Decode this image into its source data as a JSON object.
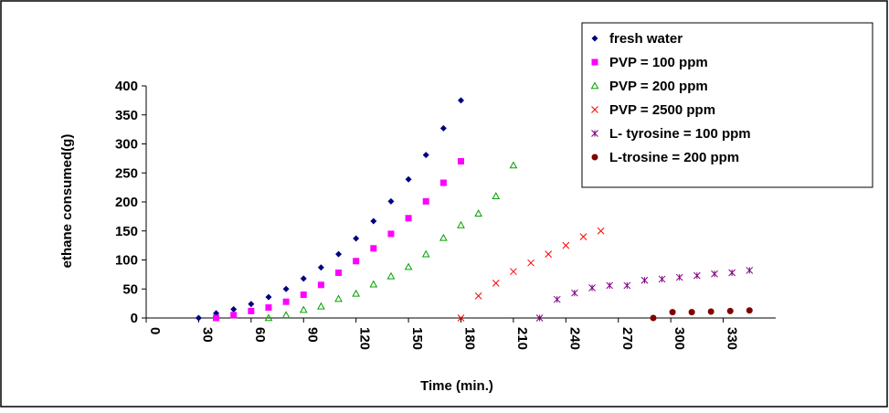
{
  "chart_data": {
    "type": "scatter",
    "xlabel": "Time (min.)",
    "ylabel": "ethane consumed(g)",
    "xlim": [
      0,
      360
    ],
    "xticks": [
      0,
      30,
      60,
      90,
      120,
      150,
      180,
      210,
      240,
      270,
      300,
      330
    ],
    "ylim": [
      0,
      400
    ],
    "yticks": [
      0,
      50,
      100,
      150,
      200,
      250,
      300,
      350,
      400
    ],
    "legend": "upper right",
    "series": [
      {
        "name": "fresh water",
        "color": "#000080",
        "marker": "diamond",
        "x": [
          30,
          40,
          50,
          60,
          70,
          80,
          90,
          100,
          110,
          120,
          130,
          140,
          150,
          160,
          170,
          180
        ],
        "values": [
          0,
          8,
          15,
          24,
          36,
          50,
          68,
          87,
          110,
          137,
          167,
          201,
          239,
          281,
          327,
          375
        ]
      },
      {
        "name": "PVP = 100 ppm",
        "color": "#ff00ff",
        "marker": "square",
        "x": [
          40,
          50,
          60,
          70,
          80,
          90,
          100,
          110,
          120,
          130,
          140,
          150,
          160,
          170,
          180
        ],
        "values": [
          0,
          5,
          12,
          18,
          28,
          40,
          57,
          78,
          98,
          120,
          145,
          172,
          201,
          233,
          270
        ]
      },
      {
        "name": "PVP = 200 ppm",
        "color": "#00a000",
        "marker": "triangle",
        "x": [
          70,
          80,
          90,
          100,
          110,
          120,
          130,
          140,
          150,
          160,
          170,
          180,
          190,
          200,
          210
        ],
        "values": [
          0,
          5,
          14,
          20,
          33,
          42,
          58,
          72,
          88,
          110,
          138,
          160,
          180,
          210,
          263
        ]
      },
      {
        "name": "PVP = 2500 ppm",
        "color": "#ff0000",
        "marker": "x",
        "x": [
          180,
          190,
          200,
          210,
          220,
          230,
          240,
          250,
          260
        ],
        "values": [
          0,
          38,
          60,
          80,
          95,
          110,
          125,
          140,
          150
        ]
      },
      {
        "name": "L- tyrosine = 100 ppm",
        "color": "#800080",
        "marker": "star",
        "x": [
          225,
          235,
          245,
          255,
          265,
          275,
          285,
          295,
          305,
          315,
          325,
          335,
          345
        ],
        "values": [
          0,
          32,
          43,
          52,
          56,
          56,
          65,
          67,
          70,
          73,
          76,
          78,
          82
        ]
      },
      {
        "name": "L-trosine = 200 ppm",
        "color": "#800000",
        "marker": "circle",
        "x": [
          290,
          301,
          312,
          323,
          334,
          345
        ],
        "values": [
          0,
          10,
          10,
          11,
          12,
          13
        ]
      }
    ]
  }
}
